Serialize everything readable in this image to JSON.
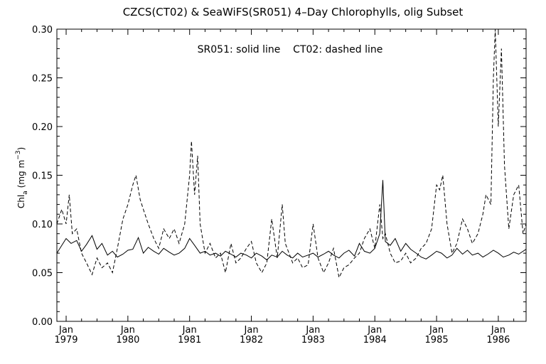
{
  "chart_data": {
    "type": "line",
    "title": "CZCS(CT02) & SeaWiFS(SR051) 4–Day Chlorophylls, olig Subset",
    "annotation": "SR051: solid line    CT02: dashed line",
    "ylabel_main": "Chl",
    "ylabel_sub": "a",
    "ylabel_unit": "(mg m",
    "ylabel_sup": "−3",
    "ylabel_close": ")",
    "xlabel": "",
    "xlim": [
      1978.85,
      1986.45
    ],
    "ylim": [
      0.0,
      0.3
    ],
    "grid": false,
    "yticks": [
      0.0,
      0.05,
      0.1,
      0.15,
      0.2,
      0.25,
      0.3
    ],
    "ytick_labels": [
      "0.00",
      "0.05",
      "0.10",
      "0.15",
      "0.20",
      "0.25",
      "0.30"
    ],
    "xticks": [
      {
        "x": 1979,
        "month": "Jan",
        "year": "1979"
      },
      {
        "x": 1980,
        "month": "Jan",
        "year": "1980"
      },
      {
        "x": 1981,
        "month": "Jan",
        "year": "1981"
      },
      {
        "x": 1982,
        "month": "Jan",
        "year": "1982"
      },
      {
        "x": 1983,
        "month": "Jan",
        "year": "1983"
      },
      {
        "x": 1984,
        "month": "Jan",
        "year": "1984"
      },
      {
        "x": 1985,
        "month": "Jan",
        "year": "1985"
      },
      {
        "x": 1986,
        "month": "Jan",
        "year": "1986"
      }
    ],
    "series": [
      {
        "name": "SR051",
        "style": "solid",
        "color": "#000000",
        "x": [
          1978.85,
          1978.93,
          1979.0,
          1979.08,
          1979.17,
          1979.25,
          1979.33,
          1979.42,
          1979.5,
          1979.58,
          1979.67,
          1979.75,
          1979.83,
          1979.92,
          1980.0,
          1980.08,
          1980.17,
          1980.25,
          1980.33,
          1980.42,
          1980.5,
          1980.58,
          1980.67,
          1980.75,
          1980.83,
          1980.92,
          1981.0,
          1981.08,
          1981.17,
          1981.25,
          1981.33,
          1981.42,
          1981.5,
          1981.58,
          1981.67,
          1981.75,
          1981.83,
          1981.92,
          1982.0,
          1982.08,
          1982.17,
          1982.25,
          1982.33,
          1982.42,
          1982.5,
          1982.58,
          1982.67,
          1982.75,
          1982.83,
          1982.92,
          1983.0,
          1983.08,
          1983.17,
          1983.25,
          1983.33,
          1983.42,
          1983.5,
          1983.58,
          1983.67,
          1983.75,
          1983.83,
          1983.92,
          1984.0,
          1984.08,
          1984.13,
          1984.17,
          1984.25,
          1984.33,
          1984.42,
          1984.5,
          1984.58,
          1984.67,
          1984.75,
          1984.83,
          1984.92,
          1985.0,
          1985.08,
          1985.17,
          1985.25,
          1985.33,
          1985.42,
          1985.5,
          1985.58,
          1985.67,
          1985.75,
          1985.83,
          1985.92,
          1986.0,
          1986.08,
          1986.17,
          1986.25,
          1986.33,
          1986.45
        ],
        "y": [
          0.07,
          0.078,
          0.085,
          0.08,
          0.083,
          0.072,
          0.079,
          0.088,
          0.074,
          0.08,
          0.068,
          0.072,
          0.066,
          0.069,
          0.073,
          0.074,
          0.086,
          0.07,
          0.076,
          0.072,
          0.069,
          0.075,
          0.071,
          0.068,
          0.07,
          0.075,
          0.085,
          0.078,
          0.07,
          0.072,
          0.068,
          0.07,
          0.067,
          0.072,
          0.069,
          0.066,
          0.07,
          0.068,
          0.065,
          0.07,
          0.067,
          0.063,
          0.068,
          0.066,
          0.072,
          0.068,
          0.065,
          0.07,
          0.066,
          0.068,
          0.07,
          0.066,
          0.069,
          0.072,
          0.068,
          0.065,
          0.07,
          0.073,
          0.067,
          0.08,
          0.072,
          0.07,
          0.075,
          0.09,
          0.145,
          0.082,
          0.078,
          0.085,
          0.072,
          0.08,
          0.074,
          0.07,
          0.066,
          0.064,
          0.068,
          0.072,
          0.07,
          0.065,
          0.068,
          0.075,
          0.069,
          0.073,
          0.068,
          0.07,
          0.066,
          0.069,
          0.073,
          0.07,
          0.066,
          0.068,
          0.071,
          0.069,
          0.074
        ]
      },
      {
        "name": "CT02",
        "style": "dashed",
        "color": "#000000",
        "x": [
          1978.85,
          1978.93,
          1979.0,
          1979.05,
          1979.1,
          1979.17,
          1979.25,
          1979.33,
          1979.42,
          1979.5,
          1979.58,
          1979.67,
          1979.75,
          1979.83,
          1979.92,
          1980.0,
          1980.08,
          1980.13,
          1980.2,
          1980.25,
          1980.33,
          1980.42,
          1980.5,
          1980.58,
          1980.67,
          1980.75,
          1980.83,
          1980.92,
          1981.0,
          1981.03,
          1981.08,
          1981.13,
          1981.17,
          1981.25,
          1981.33,
          1981.42,
          1981.5,
          1981.58,
          1981.67,
          1981.75,
          1981.83,
          1981.92,
          1982.0,
          1982.08,
          1982.17,
          1982.25,
          1982.33,
          1982.42,
          1982.5,
          1982.55,
          1982.67,
          1982.75,
          1982.83,
          1982.92,
          1983.0,
          1983.08,
          1983.17,
          1983.25,
          1983.33,
          1983.42,
          1983.5,
          1983.58,
          1983.67,
          1983.75,
          1983.83,
          1983.92,
          1984.0,
          1984.08,
          1984.13,
          1984.17,
          1984.25,
          1984.33,
          1984.42,
          1984.5,
          1984.58,
          1984.67,
          1984.75,
          1984.83,
          1984.92,
          1985.0,
          1985.05,
          1985.1,
          1985.17,
          1985.25,
          1985.33,
          1985.42,
          1985.5,
          1985.58,
          1985.67,
          1985.75,
          1985.8,
          1985.88,
          1985.92,
          1985.95,
          1986.0,
          1986.05,
          1986.1,
          1986.17,
          1986.25,
          1986.33,
          1986.4,
          1986.45
        ],
        "y": [
          0.1,
          0.115,
          0.1,
          0.13,
          0.09,
          0.095,
          0.07,
          0.06,
          0.048,
          0.065,
          0.055,
          0.06,
          0.05,
          0.075,
          0.105,
          0.12,
          0.14,
          0.15,
          0.125,
          0.115,
          0.1,
          0.085,
          0.075,
          0.095,
          0.085,
          0.095,
          0.08,
          0.1,
          0.15,
          0.185,
          0.13,
          0.17,
          0.1,
          0.07,
          0.08,
          0.065,
          0.07,
          0.05,
          0.08,
          0.06,
          0.065,
          0.075,
          0.082,
          0.06,
          0.05,
          0.06,
          0.105,
          0.065,
          0.12,
          0.08,
          0.06,
          0.065,
          0.055,
          0.058,
          0.1,
          0.065,
          0.05,
          0.06,
          0.075,
          0.045,
          0.055,
          0.058,
          0.065,
          0.07,
          0.085,
          0.095,
          0.075,
          0.12,
          0.085,
          0.09,
          0.07,
          0.06,
          0.062,
          0.07,
          0.06,
          0.065,
          0.075,
          0.08,
          0.095,
          0.14,
          0.135,
          0.15,
          0.1,
          0.07,
          0.08,
          0.105,
          0.095,
          0.08,
          0.09,
          0.11,
          0.13,
          0.12,
          0.25,
          0.3,
          0.2,
          0.28,
          0.16,
          0.095,
          0.13,
          0.14,
          0.09,
          0.1
        ]
      }
    ]
  }
}
